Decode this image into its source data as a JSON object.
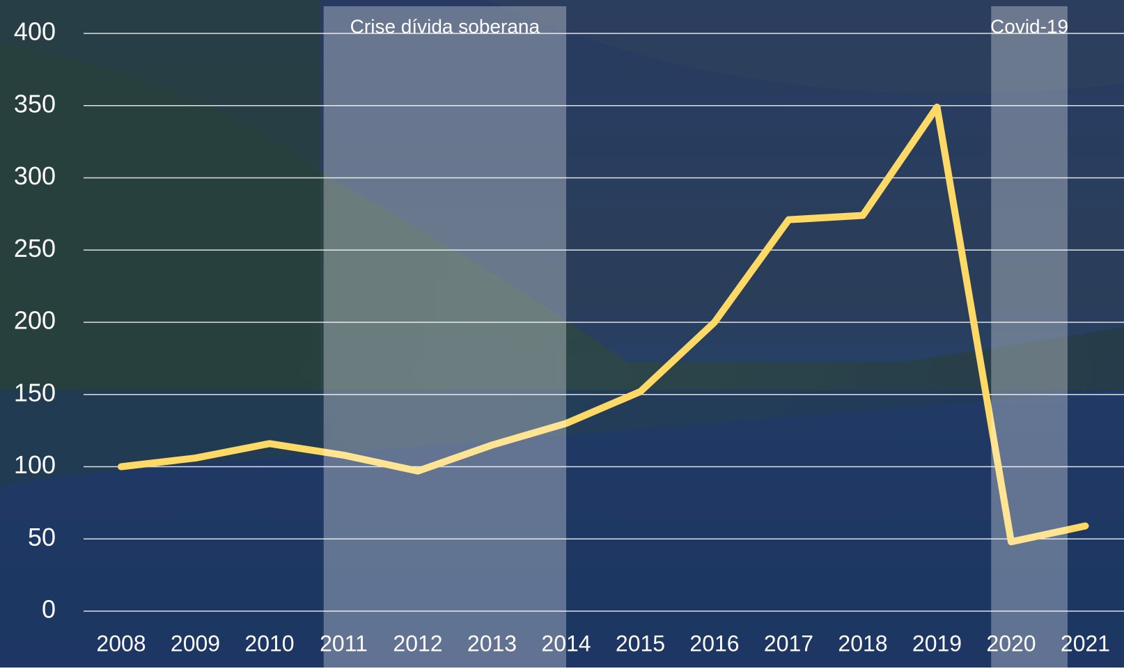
{
  "chart_data": {
    "type": "line",
    "categories": [
      "2008",
      "2009",
      "2010",
      "2011",
      "2012",
      "2013",
      "2014",
      "2015",
      "2016",
      "2017",
      "2018",
      "2019",
      "2020",
      "2021"
    ],
    "series": [
      {
        "color": "#ffd966",
        "values": [
          100,
          106,
          116,
          108,
          97,
          115,
          130,
          152,
          200,
          271,
          274,
          349,
          48,
          59
        ]
      }
    ],
    "ylim": [
      0,
      400
    ],
    "yticks": [
      0,
      50,
      100,
      150,
      200,
      250,
      300,
      350,
      400
    ],
    "grid": true,
    "annotations": [
      {
        "text": "Crise dívida soberana",
        "from": "2011",
        "to": "2014"
      },
      {
        "text": "Covid-19",
        "from": "2020",
        "to": "2021"
      }
    ]
  }
}
